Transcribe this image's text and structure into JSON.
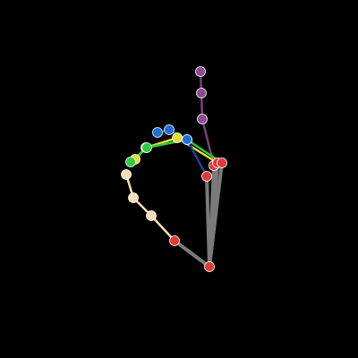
{
  "background_color": "#000000",
  "skeleton": {
    "joint_outline_color": "#ffffff",
    "bones": [
      {
        "from": "wrist",
        "to": "thumb_cmc",
        "color": "#7a7a7a"
      },
      {
        "from": "thumb_cmc",
        "to": "thumb_mcp",
        "color": "#f5deb3"
      },
      {
        "from": "thumb_mcp",
        "to": "thumb_ip",
        "color": "#f5deb3"
      },
      {
        "from": "thumb_ip",
        "to": "thumb_tip",
        "color": "#f5deb3"
      },
      {
        "from": "wrist",
        "to": "index_mcp",
        "color": "#7a7a7a"
      },
      {
        "from": "index_mcp",
        "to": "index_pip",
        "color": "#7c3f7f"
      },
      {
        "from": "index_pip",
        "to": "index_dip",
        "color": "#7c3f7f"
      },
      {
        "from": "index_dip",
        "to": "index_tip",
        "color": "#7c3f7f"
      },
      {
        "from": "wrist",
        "to": "middle_mcp",
        "color": "#7a7a7a"
      },
      {
        "from": "middle_mcp",
        "to": "middle_pip",
        "color": "#e6dd2f"
      },
      {
        "from": "middle_pip",
        "to": "middle_dip",
        "color": "#e6dd2f"
      },
      {
        "from": "middle_dip",
        "to": "middle_tip",
        "color": "#e6dd2f"
      },
      {
        "from": "wrist",
        "to": "ring_mcp",
        "color": "#7a7a7a"
      },
      {
        "from": "ring_mcp",
        "to": "ring_pip",
        "color": "#2ecc40"
      },
      {
        "from": "ring_pip",
        "to": "ring_dip",
        "color": "#2ecc40"
      },
      {
        "from": "ring_dip",
        "to": "ring_tip",
        "color": "#2ecc40"
      },
      {
        "from": "wrist",
        "to": "pinky_mcp",
        "color": "#7a7a7a"
      },
      {
        "from": "pinky_mcp",
        "to": "pinky_pip",
        "color": "#1f3f9a"
      },
      {
        "from": "pinky_pip",
        "to": "pinky_dip",
        "color": "#1f3f9a"
      },
      {
        "from": "pinky_dip",
        "to": "pinky_tip",
        "color": "#1f3f9a"
      }
    ],
    "joints": [
      {
        "id": "wrist",
        "color": "#e03a3a"
      },
      {
        "id": "thumb_cmc",
        "color": "#e03a3a"
      },
      {
        "id": "thumb_mcp",
        "color": "#f5deb3"
      },
      {
        "id": "thumb_ip",
        "color": "#f5deb3"
      },
      {
        "id": "thumb_tip",
        "color": "#f5deb3"
      },
      {
        "id": "index_mcp",
        "color": "#e03a3a"
      },
      {
        "id": "index_pip",
        "color": "#8e4b8f"
      },
      {
        "id": "index_dip",
        "color": "#8e4b8f"
      },
      {
        "id": "index_tip",
        "color": "#8e4b8f"
      },
      {
        "id": "middle_mcp",
        "color": "#e03a3a"
      },
      {
        "id": "middle_pip",
        "color": "#e6dd2f"
      },
      {
        "id": "middle_dip",
        "color": "#e6dd2f"
      },
      {
        "id": "middle_tip",
        "color": "#e6dd2f"
      },
      {
        "id": "ring_mcp",
        "color": "#e03a3a"
      },
      {
        "id": "ring_pip",
        "color": "#2ecc40"
      },
      {
        "id": "ring_dip",
        "color": "#2ecc40"
      },
      {
        "id": "ring_tip",
        "color": "#2ecc40"
      },
      {
        "id": "pinky_mcp",
        "color": "#e03a3a"
      },
      {
        "id": "pinky_pip",
        "color": "#1e6fd6"
      },
      {
        "id": "pinky_dip",
        "color": "#1e6fd6"
      },
      {
        "id": "pinky_tip",
        "color": "#1e6fd6"
      }
    ]
  }
}
